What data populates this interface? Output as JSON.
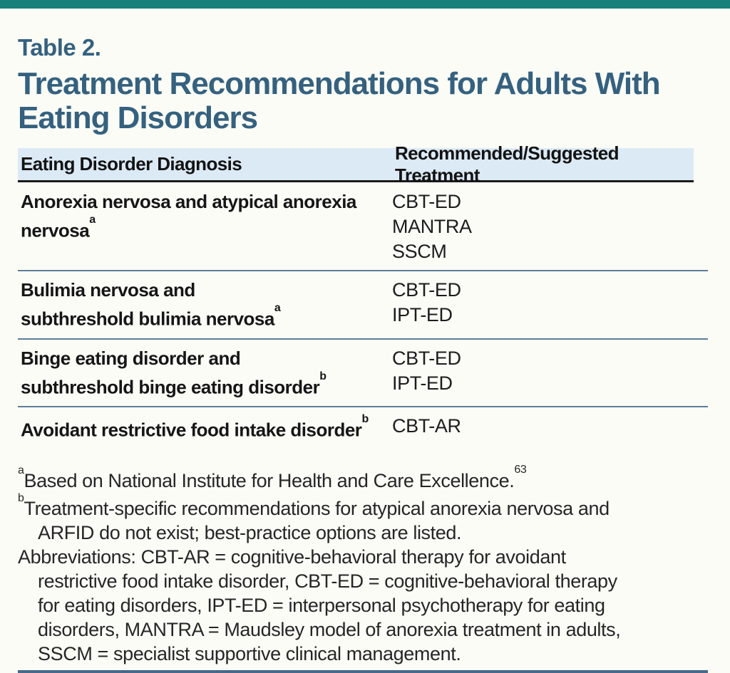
{
  "page": {
    "accent_teal": "#17807a",
    "accent_blue": "#35617f",
    "header_band_blue": "#dceaf6",
    "rule_slate_blue": "#5b7d99",
    "background": "#fbfcf6"
  },
  "header": {
    "eyebrow": "Table 2.",
    "title": "Treatment Recommendations for Adults With\nEating Disorders"
  },
  "table": {
    "columns": [
      "Eating Disorder Diagnosis",
      "Recommended/Suggested Treatment"
    ],
    "rows": [
      {
        "diagnosis": "Anorexia nervosa and atypical anorexia\nnervosa",
        "note_ref": "a",
        "treatments": [
          "CBT-ED",
          "MANTRA",
          "SSCM"
        ]
      },
      {
        "diagnosis": "Bulimia nervosa and\nsubthreshold bulimia nervosa",
        "note_ref": "a",
        "treatments": [
          "CBT-ED",
          "IPT-ED"
        ]
      },
      {
        "diagnosis": "Binge eating disorder and\nsubthreshold binge eating disorder",
        "note_ref": "b",
        "treatments": [
          "CBT-ED",
          "IPT-ED"
        ]
      },
      {
        "diagnosis": "Avoidant restrictive food intake disorder",
        "note_ref": "b",
        "treatments": [
          "CBT-AR"
        ]
      }
    ]
  },
  "footnotes": {
    "a": {
      "marker": "a",
      "text": "Based on National Institute for Health and Care Excellence.",
      "citation": "63"
    },
    "b": {
      "marker": "b",
      "line1": "Treatment-specific recommendations for atypical anorexia nervosa and",
      "line2": "ARFID do not exist; best-practice options are listed."
    },
    "abbreviations": {
      "line1": "Abbreviations: CBT-AR = cognitive-behavioral therapy for avoidant",
      "line2": "restrictive food intake disorder, CBT-ED = cognitive-behavioral therapy",
      "line3": "for eating disorders, IPT-ED = interpersonal psychotherapy for eating",
      "line4": "disorders, MANTRA = Maudsley model of anorexia treatment in adults,",
      "line5": "SSCM = specialist supportive clinical management."
    }
  }
}
